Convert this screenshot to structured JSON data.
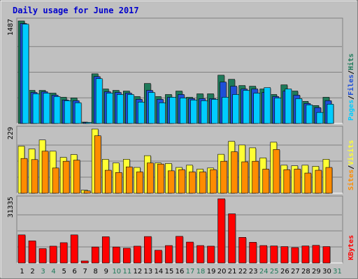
{
  "chart_data": {
    "type": "bar",
    "title": "Daily usage for June 2017",
    "days": [
      "1",
      "2",
      "3",
      "4",
      "5",
      "6",
      "7",
      "8",
      "9",
      "10",
      "11",
      "12",
      "13",
      "14",
      "15",
      "16",
      "17",
      "18",
      "19",
      "20",
      "21",
      "22",
      "23",
      "24",
      "25",
      "26",
      "27",
      "28",
      "29",
      "30",
      "31"
    ],
    "weekend_days": [
      "3",
      "4",
      "10",
      "11",
      "17",
      "18",
      "24",
      "25",
      "31"
    ],
    "colors": {
      "hits": "#1e7a5a",
      "files": "#1e4fd8",
      "pages": "#00ccff",
      "visits": "#ffff33",
      "sites": "#ff8c00",
      "kbytes": "#ff0000",
      "title": "#0000cc",
      "weekday_label": "#000000",
      "weekend_label": "#1e7a5a",
      "panel_bg": "#c0c0c0"
    },
    "panels": [
      {
        "id": "hits-files-pages",
        "max_label": "1487",
        "max": 1487,
        "legend": [
          {
            "name": "Pages",
            "color": "#00ccff"
          },
          {
            "name": "Files",
            "color": "#1e4fd8"
          },
          {
            "name": "Hits",
            "color": "#1e7a5a"
          }
        ],
        "series": [
          {
            "name": "Hits",
            "color": "#1e7a5a",
            "values": [
              1487,
              480,
              480,
              440,
              380,
              370,
              20,
              720,
              500,
              480,
              470,
              390,
              580,
              390,
              420,
              470,
              380,
              430,
              430,
              700,
              640,
              550,
              540,
              500,
              420,
              560,
              470,
              320,
              260,
              380,
              0
            ]
          },
          {
            "name": "Files",
            "color": "#1e4fd8",
            "values": [
              1450,
              450,
              460,
              410,
              340,
              330,
              15,
              680,
              460,
              450,
              440,
              350,
              480,
              350,
              380,
              420,
              360,
              360,
              360,
              600,
              540,
              500,
              500,
              450,
              390,
              470,
              410,
              290,
              230,
              330,
              0
            ]
          },
          {
            "name": "Pages",
            "color": "#00ccff",
            "values": [
              1440,
              430,
              440,
              390,
              330,
              300,
              15,
              650,
              440,
              420,
              420,
              310,
              450,
              300,
              380,
              370,
              340,
              330,
              350,
              380,
              420,
              480,
              440,
              520,
              370,
              500,
              360,
              270,
              160,
              280,
              0
            ]
          }
        ]
      },
      {
        "id": "visits-sites",
        "max_label": "229",
        "max": 229,
        "legend": [
          {
            "name": "Sites",
            "color": "#ff8c00"
          },
          {
            "name": "Visits",
            "color": "#ffff33"
          }
        ],
        "series": [
          {
            "name": "Visits",
            "color": "#ffff33",
            "values": [
              168,
              158,
              190,
              150,
              128,
              138,
              11,
              229,
              121,
              108,
              121,
              92,
              134,
              108,
              106,
              92,
              100,
              86,
              90,
              139,
              185,
              172,
              162,
              126,
              182,
              100,
              98,
              100,
              96,
              121,
              0
            ]
          },
          {
            "name": "Sites",
            "color": "#ff8c00",
            "values": [
              124,
              120,
              150,
              90,
              114,
              118,
              8,
              205,
              82,
              74,
              94,
              76,
              108,
              104,
              80,
              84,
              76,
              76,
              84,
              114,
              148,
              112,
              114,
              86,
              156,
              84,
              86,
              72,
              82,
              92,
              0
            ]
          }
        ]
      },
      {
        "id": "kbytes",
        "max_label": "31335",
        "max": 31335,
        "legend": [
          {
            "name": "KBytes",
            "color": "#ff0000"
          }
        ],
        "series": [
          {
            "name": "KBytes",
            "color": "#ff0000",
            "values": [
              13700,
              10800,
              7000,
              8200,
              9900,
              13700,
              1000,
              7800,
              12800,
              7800,
              7200,
              8200,
              12900,
              6200,
              8500,
              13000,
              10200,
              8500,
              8200,
              31335,
              24000,
              12500,
              10100,
              8500,
              8300,
              8000,
              7500,
              8300,
              8600,
              8000,
              0
            ]
          }
        ]
      }
    ]
  }
}
